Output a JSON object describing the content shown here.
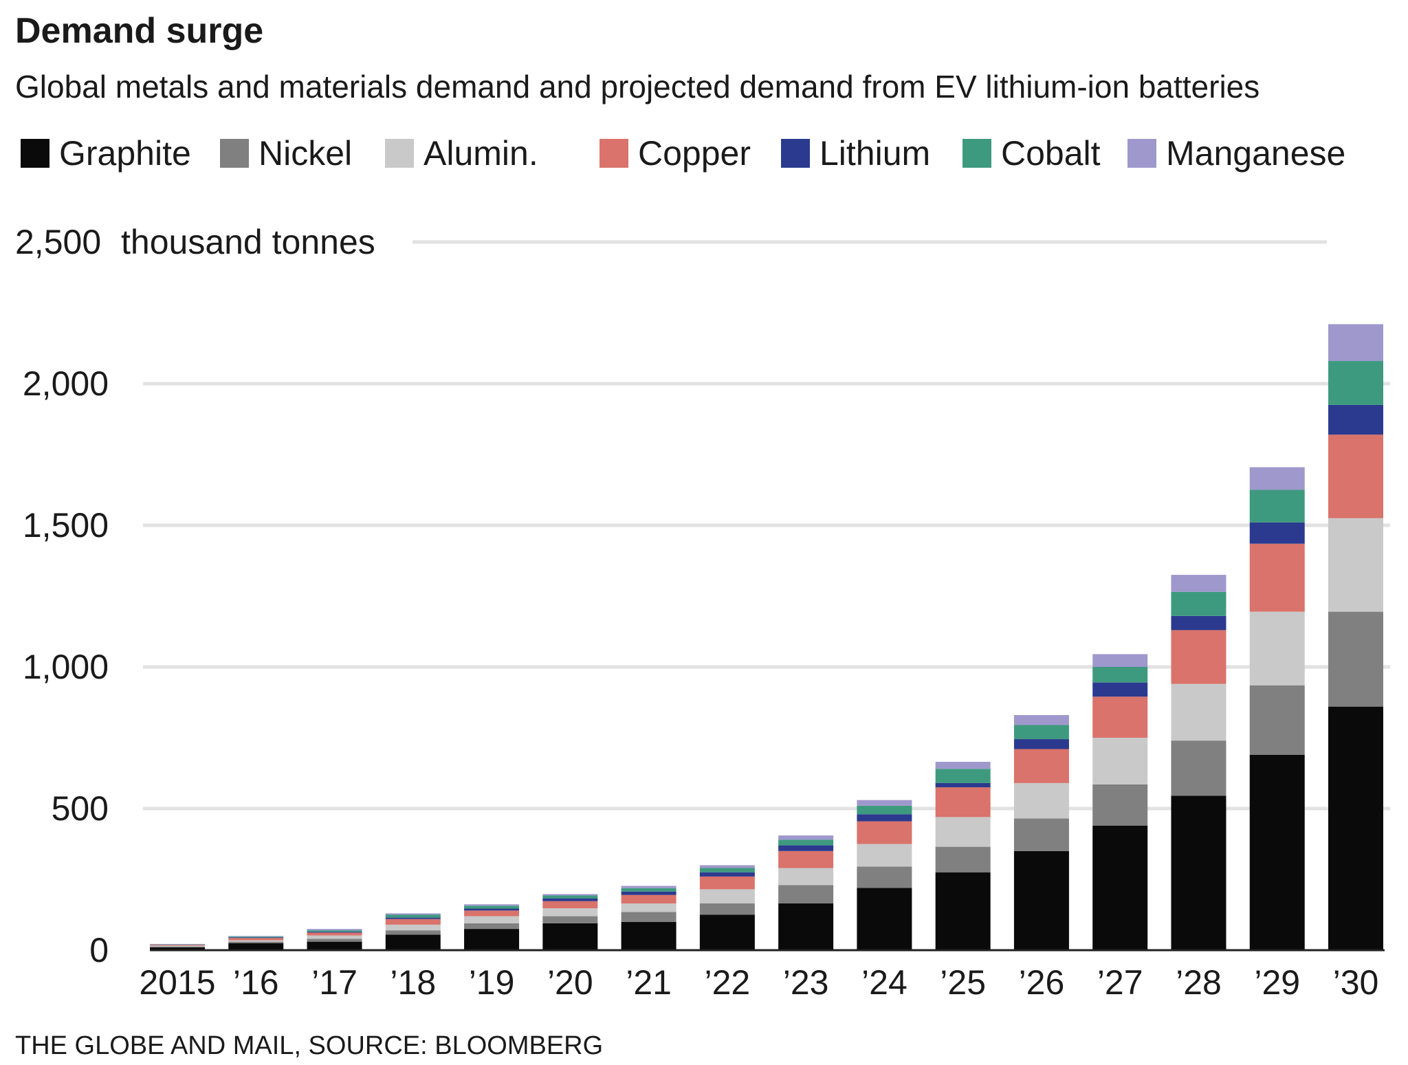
{
  "chart_data": {
    "type": "bar",
    "stacked": true,
    "title": "Demand surge",
    "subtitle": "Global metals and materials demand and projected demand from EV lithium-ion batteries",
    "ylabel": "thousand tonnes",
    "ylim": [
      0,
      2500
    ],
    "yticks": [
      0,
      500,
      1000,
      1500,
      2000,
      2500
    ],
    "ytick_labels": [
      "0",
      "500",
      "1,000",
      "1,500",
      "2,000",
      "2,500"
    ],
    "grid": true,
    "legend_position": "top",
    "categories": [
      "2015",
      "'16",
      "'17",
      "'18",
      "'19",
      "'20",
      "'21",
      "'22",
      "'23",
      "'24",
      "'25",
      "'26",
      "'27",
      "'28",
      "'29",
      "'30"
    ],
    "series": [
      {
        "name": "Graphite",
        "color": "#0a0a0a",
        "values": [
          10,
          25,
          30,
          55,
          75,
          95,
          100,
          125,
          165,
          220,
          275,
          350,
          440,
          545,
          690,
          860
        ]
      },
      {
        "name": "Nickel",
        "color": "#808080",
        "values": [
          3,
          5,
          10,
          15,
          20,
          25,
          35,
          40,
          65,
          75,
          90,
          115,
          145,
          195,
          245,
          335
        ]
      },
      {
        "name": "Alumin.",
        "color": "#c9c9c9",
        "values": [
          3,
          5,
          12,
          20,
          25,
          28,
          30,
          50,
          60,
          80,
          105,
          125,
          165,
          200,
          260,
          330
        ]
      },
      {
        "name": "Copper",
        "color": "#d9736b",
        "values": [
          3,
          8,
          10,
          20,
          20,
          25,
          30,
          45,
          60,
          80,
          105,
          120,
          145,
          190,
          240,
          295
        ]
      },
      {
        "name": "Lithium",
        "color": "#2b3a8f",
        "values": [
          1,
          2,
          3,
          5,
          7,
          10,
          12,
          15,
          20,
          25,
          15,
          35,
          50,
          50,
          75,
          105
        ]
      },
      {
        "name": "Cobalt",
        "color": "#3e9a7f",
        "values": [
          1,
          3,
          5,
          10,
          10,
          10,
          12,
          15,
          20,
          30,
          50,
          50,
          55,
          85,
          115,
          155
        ]
      },
      {
        "name": "Manganese",
        "color": "#9f98cc",
        "values": [
          1,
          2,
          5,
          5,
          5,
          5,
          8,
          10,
          15,
          20,
          25,
          35,
          45,
          60,
          80,
          130
        ]
      }
    ]
  },
  "footer": {
    "credit": "THE GLOBE AND MAIL,  SOURCE: BLOOMBERG"
  },
  "colors": {
    "gridline": "#e2e2e2",
    "baseline": "#222222",
    "text": "#1a1a1a"
  }
}
